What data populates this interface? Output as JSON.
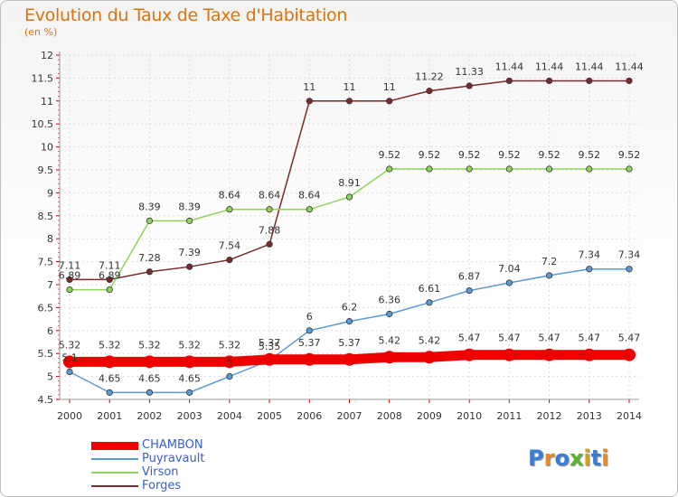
{
  "title": "Evolution du Taux de Taxe d'Habitation",
  "subtitle": "(en %)",
  "logo": {
    "text": "Proxiti",
    "colors": [
      "#3b7fd4",
      "#e8892a",
      "#3b7fd4",
      "#5cb531",
      "#d4a017",
      "#3b7fd4",
      "#e8892a"
    ]
  },
  "chart_data": {
    "type": "line",
    "x": [
      "2000",
      "2001",
      "2002",
      "2003",
      "2004",
      "2005",
      "2006",
      "2007",
      "2008",
      "2009",
      "2010",
      "2011",
      "2012",
      "2013",
      "2014"
    ],
    "ylim": [
      4.5,
      12
    ],
    "yticks": [
      "4.5",
      "5",
      "5.5",
      "6",
      "6.5",
      "7",
      "7.5",
      "8",
      "8.5",
      "9",
      "9.5",
      "10",
      "10.5",
      "11",
      "11.5",
      "12"
    ],
    "grid": true,
    "legend_position": "bottom-left",
    "series": [
      {
        "name": "CHAMBON",
        "color": "#ee0000",
        "values": [
          5.32,
          5.32,
          5.32,
          5.32,
          5.32,
          5.37,
          5.37,
          5.37,
          5.42,
          5.42,
          5.47,
          5.47,
          5.47,
          5.47,
          5.47
        ],
        "labels": [
          "5.32",
          "5.32",
          "5.32",
          "5.32",
          "5.32",
          "5.37",
          "5.37",
          "5.37",
          "5.42",
          "5.42",
          "5.47",
          "5.47",
          "5.47",
          "5.47",
          "5.47"
        ]
      },
      {
        "name": "Puyravault",
        "color": "#5b9bd5",
        "values": [
          5.1,
          4.65,
          4.65,
          4.65,
          5.0,
          5.35,
          6.0,
          6.2,
          6.36,
          6.61,
          6.87,
          7.04,
          7.2,
          7.34,
          7.34
        ],
        "labels": [
          "5.1",
          "4.65",
          "4.65",
          "4.65",
          "5",
          "5.35",
          "6",
          "6.2",
          "6.36",
          "6.61",
          "6.87",
          "7.04",
          "7.2",
          "7.34",
          "7.34"
        ]
      },
      {
        "name": "Virson",
        "color": "#8fd45a",
        "values": [
          6.89,
          6.89,
          8.39,
          8.39,
          8.64,
          8.64,
          8.64,
          8.91,
          9.52,
          9.52,
          9.52,
          9.52,
          9.52,
          9.52,
          9.52
        ],
        "labels": [
          "6.89",
          "6.89",
          "8.39",
          "8.39",
          "8.64",
          "8.64",
          "8.64",
          "8.91",
          "9.52",
          "9.52",
          "9.52",
          "9.52",
          "9.52",
          "9.52",
          "9.52"
        ]
      },
      {
        "name": "Forges",
        "color": "#7a2a2a",
        "values": [
          7.11,
          7.11,
          7.28,
          7.39,
          7.54,
          7.88,
          11,
          11,
          11,
          11.22,
          11.33,
          11.44,
          11.44,
          11.44,
          11.44
        ],
        "labels": [
          "7.11",
          "7.11",
          "7.28",
          "7.39",
          "7.54",
          "7.88",
          "11",
          "11",
          "11",
          "11.22",
          "11.33",
          "11.44",
          "11.44",
          "11.44",
          "11.44"
        ]
      }
    ]
  }
}
